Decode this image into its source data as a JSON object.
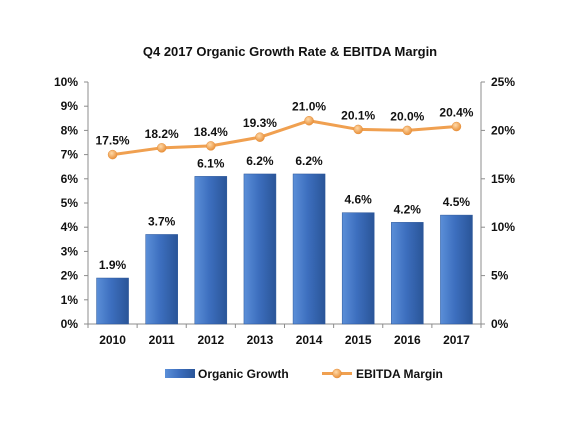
{
  "chart_data": {
    "type": "bar",
    "title": "Q4 2017 Organic Growth Rate & EBITDA Margin",
    "categories": [
      "2010",
      "2011",
      "2012",
      "2013",
      "2014",
      "2015",
      "2016",
      "2017"
    ],
    "series": [
      {
        "name": "Organic Growth",
        "type": "bar",
        "axis": "left",
        "values": [
          1.9,
          3.7,
          6.1,
          6.2,
          6.2,
          4.6,
          4.2,
          4.5
        ],
        "data_labels": [
          "1.9%",
          "3.7%",
          "6.1%",
          "6.2%",
          "6.2%",
          "4.6%",
          "4.2%",
          "4.5%"
        ],
        "color": "#3d6fbf"
      },
      {
        "name": "EBITDA Margin",
        "type": "line",
        "axis": "right",
        "values": [
          17.5,
          18.2,
          18.4,
          19.3,
          21.0,
          20.1,
          20.0,
          20.4
        ],
        "data_labels": [
          "17.5%",
          "18.2%",
          "18.4%",
          "19.3%",
          "21.0%",
          "20.1%",
          "20.0%",
          "20.4%"
        ],
        "color": "#f0a050"
      }
    ],
    "y_left": {
      "range": [
        0,
        10
      ],
      "ticks": [
        0,
        1,
        2,
        3,
        4,
        5,
        6,
        7,
        8,
        9,
        10
      ],
      "tick_labels": [
        "0%",
        "1%",
        "2%",
        "3%",
        "4%",
        "5%",
        "6%",
        "7%",
        "8%",
        "9%",
        "10%"
      ]
    },
    "y_right": {
      "range": [
        0,
        25
      ],
      "ticks": [
        0,
        5,
        10,
        15,
        20,
        25
      ],
      "tick_labels": [
        "0%",
        "5%",
        "10%",
        "15%",
        "20%",
        "25%"
      ]
    },
    "grid": false,
    "legend": {
      "position": "bottom",
      "entries": [
        "Organic Growth",
        "EBITDA Margin"
      ]
    }
  }
}
